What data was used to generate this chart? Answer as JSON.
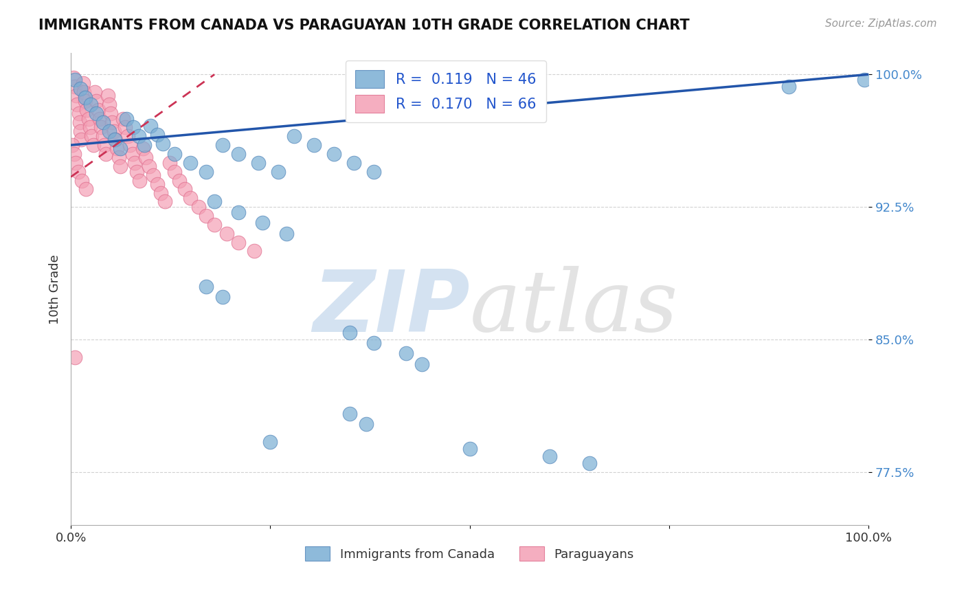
{
  "title": "IMMIGRANTS FROM CANADA VS PARAGUAYAN 10TH GRADE CORRELATION CHART",
  "source_text": "Source: ZipAtlas.com",
  "ylabel": "10th Grade",
  "xlim": [
    0.0,
    1.0
  ],
  "ylim": [
    0.745,
    1.012
  ],
  "ytick_vals": [
    0.775,
    0.85,
    0.925,
    1.0
  ],
  "ytick_labels": [
    "77.5%",
    "85.0%",
    "92.5%",
    "100.0%"
  ],
  "xtick_vals": [
    0.0,
    0.25,
    0.5,
    0.75,
    1.0
  ],
  "xtick_labels": [
    "0.0%",
    "",
    "",
    "",
    "100.0%"
  ],
  "blue_R": 0.119,
  "blue_N": 46,
  "pink_R": 0.17,
  "pink_N": 66,
  "blue_label": "Immigrants from Canada",
  "pink_label": "Paraguayans",
  "background_color": "#ffffff",
  "blue_color": "#7aaed4",
  "blue_edge_color": "#5588bb",
  "pink_color": "#f4a0b5",
  "pink_edge_color": "#e07090",
  "blue_line_color": "#2255aa",
  "pink_line_color": "#cc3355",
  "grid_color": "#cccccc",
  "title_color": "#111111",
  "source_color": "#999999",
  "ytick_color": "#4488cc",
  "xtick_color": "#333333",
  "ylabel_color": "#333333",
  "legend_label_color": "#333333",
  "legend_value_color": "#2255cc",
  "blue_points": [
    [
      0.005,
      0.997
    ],
    [
      0.012,
      0.992
    ],
    [
      0.018,
      0.987
    ],
    [
      0.025,
      0.983
    ],
    [
      0.032,
      0.978
    ],
    [
      0.04,
      0.973
    ],
    [
      0.048,
      0.968
    ],
    [
      0.055,
      0.963
    ],
    [
      0.062,
      0.958
    ],
    [
      0.07,
      0.975
    ],
    [
      0.078,
      0.97
    ],
    [
      0.085,
      0.965
    ],
    [
      0.092,
      0.96
    ],
    [
      0.1,
      0.971
    ],
    [
      0.108,
      0.966
    ],
    [
      0.115,
      0.961
    ],
    [
      0.13,
      0.955
    ],
    [
      0.15,
      0.95
    ],
    [
      0.17,
      0.945
    ],
    [
      0.19,
      0.96
    ],
    [
      0.21,
      0.955
    ],
    [
      0.235,
      0.95
    ],
    [
      0.26,
      0.945
    ],
    [
      0.28,
      0.965
    ],
    [
      0.305,
      0.96
    ],
    [
      0.33,
      0.955
    ],
    [
      0.355,
      0.95
    ],
    [
      0.38,
      0.945
    ],
    [
      0.18,
      0.928
    ],
    [
      0.21,
      0.922
    ],
    [
      0.24,
      0.916
    ],
    [
      0.27,
      0.91
    ],
    [
      0.17,
      0.88
    ],
    [
      0.19,
      0.874
    ],
    [
      0.35,
      0.854
    ],
    [
      0.38,
      0.848
    ],
    [
      0.42,
      0.842
    ],
    [
      0.44,
      0.836
    ],
    [
      0.35,
      0.808
    ],
    [
      0.37,
      0.802
    ],
    [
      0.25,
      0.792
    ],
    [
      0.5,
      0.788
    ],
    [
      0.6,
      0.784
    ],
    [
      0.65,
      0.78
    ],
    [
      0.995,
      0.997
    ],
    [
      0.9,
      0.993
    ]
  ],
  "pink_points": [
    [
      0.003,
      0.998
    ],
    [
      0.005,
      0.993
    ],
    [
      0.007,
      0.988
    ],
    [
      0.008,
      0.983
    ],
    [
      0.01,
      0.978
    ],
    [
      0.011,
      0.973
    ],
    [
      0.012,
      0.968
    ],
    [
      0.013,
      0.963
    ],
    [
      0.015,
      0.995
    ],
    [
      0.016,
      0.99
    ],
    [
      0.018,
      0.985
    ],
    [
      0.02,
      0.98
    ],
    [
      0.022,
      0.975
    ],
    [
      0.024,
      0.97
    ],
    [
      0.026,
      0.965
    ],
    [
      0.028,
      0.96
    ],
    [
      0.03,
      0.99
    ],
    [
      0.032,
      0.985
    ],
    [
      0.034,
      0.98
    ],
    [
      0.036,
      0.975
    ],
    [
      0.038,
      0.97
    ],
    [
      0.04,
      0.965
    ],
    [
      0.042,
      0.96
    ],
    [
      0.044,
      0.955
    ],
    [
      0.046,
      0.988
    ],
    [
      0.048,
      0.983
    ],
    [
      0.05,
      0.978
    ],
    [
      0.052,
      0.973
    ],
    [
      0.054,
      0.968
    ],
    [
      0.056,
      0.963
    ],
    [
      0.058,
      0.958
    ],
    [
      0.06,
      0.953
    ],
    [
      0.062,
      0.948
    ],
    [
      0.065,
      0.975
    ],
    [
      0.068,
      0.97
    ],
    [
      0.071,
      0.965
    ],
    [
      0.074,
      0.96
    ],
    [
      0.077,
      0.955
    ],
    [
      0.08,
      0.95
    ],
    [
      0.083,
      0.945
    ],
    [
      0.086,
      0.94
    ],
    [
      0.09,
      0.958
    ],
    [
      0.094,
      0.953
    ],
    [
      0.098,
      0.948
    ],
    [
      0.103,
      0.943
    ],
    [
      0.108,
      0.938
    ],
    [
      0.113,
      0.933
    ],
    [
      0.118,
      0.928
    ],
    [
      0.124,
      0.95
    ],
    [
      0.13,
      0.945
    ],
    [
      0.136,
      0.94
    ],
    [
      0.143,
      0.935
    ],
    [
      0.15,
      0.93
    ],
    [
      0.16,
      0.925
    ],
    [
      0.17,
      0.92
    ],
    [
      0.18,
      0.915
    ],
    [
      0.195,
      0.91
    ],
    [
      0.21,
      0.905
    ],
    [
      0.23,
      0.9
    ],
    [
      0.002,
      0.96
    ],
    [
      0.004,
      0.955
    ],
    [
      0.006,
      0.95
    ],
    [
      0.009,
      0.945
    ],
    [
      0.014,
      0.94
    ],
    [
      0.019,
      0.935
    ],
    [
      0.005,
      0.84
    ]
  ],
  "blue_line_x": [
    0.0,
    1.0
  ],
  "blue_line_y": [
    0.96,
    1.0
  ],
  "pink_line_x": [
    0.0,
    0.18
  ],
  "pink_line_y": [
    0.942,
    1.0
  ]
}
